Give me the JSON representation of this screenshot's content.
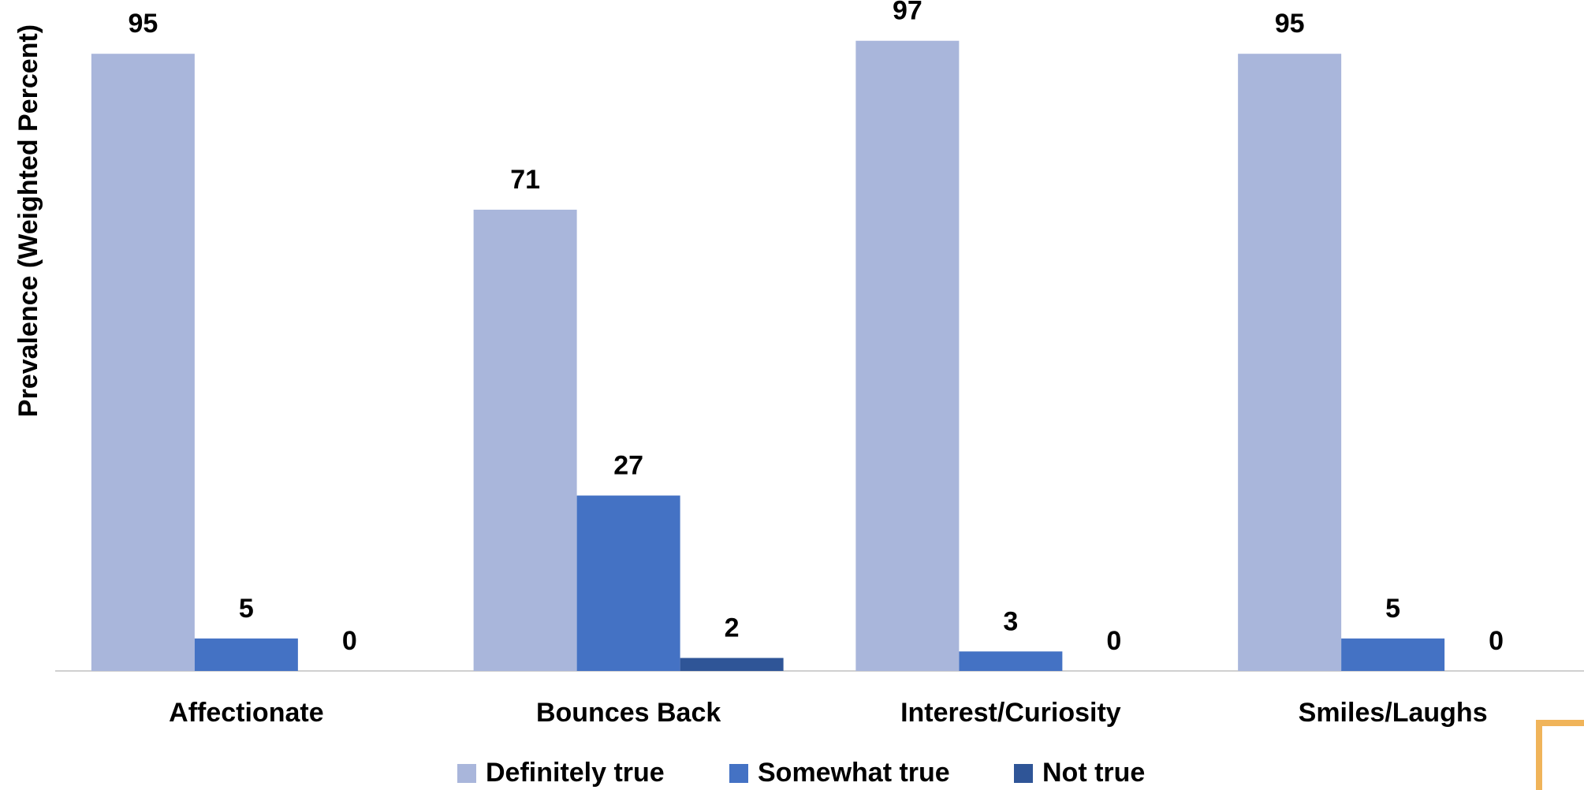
{
  "chart_data": {
    "type": "bar",
    "y_label": "Prevalence (Weighted Percent)",
    "categories": [
      "Affectionate",
      "Bounces Back",
      "Interest/Curiosity",
      "Smiles/Laughs"
    ],
    "series": [
      {
        "name": "Definitely true",
        "color": "#a9b6db",
        "values": [
          95,
          71,
          97,
          95
        ]
      },
      {
        "name": "Somewhat true",
        "color": "#4472c4",
        "values": [
          5,
          27,
          3,
          5
        ]
      },
      {
        "name": "Not true",
        "color": "#2f5597",
        "values": [
          0,
          2,
          0,
          0
        ]
      }
    ],
    "ylim": [
      0,
      100
    ]
  }
}
